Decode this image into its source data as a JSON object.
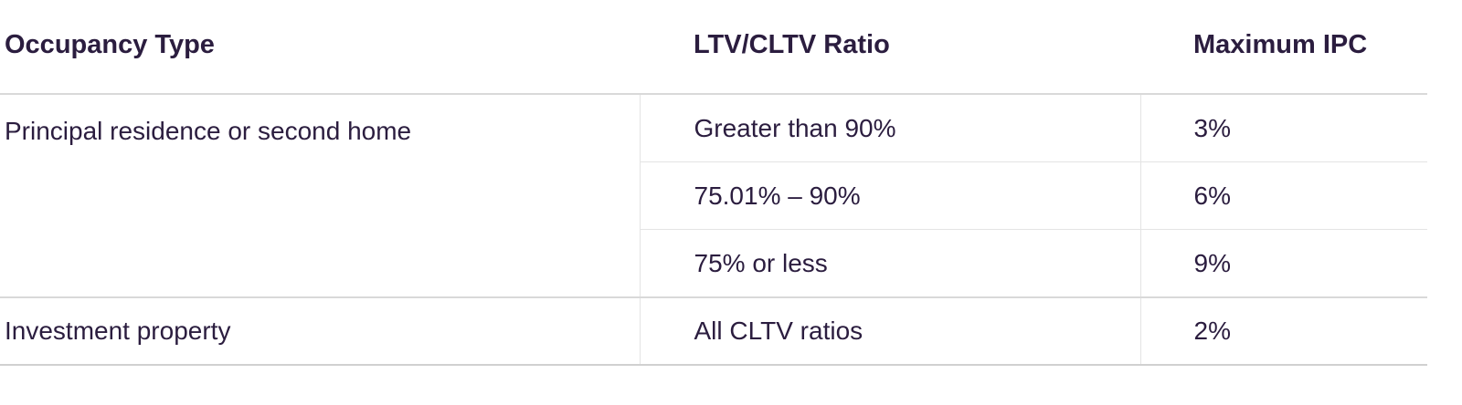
{
  "table": {
    "headers": [
      "Occupancy Type",
      "LTV/CLTV Ratio",
      "Maximum IPC"
    ],
    "groups": [
      {
        "occupancy": "Principal residence or second home",
        "rows": [
          {
            "ltv": "Greater than 90%",
            "ipc": "3%"
          },
          {
            "ltv": "75.01% – 90%",
            "ipc": "6%"
          },
          {
            "ltv": "75% or less",
            "ipc": "9%"
          }
        ]
      },
      {
        "occupancy": "Investment property",
        "rows": [
          {
            "ltv": "All CLTV ratios",
            "ipc": "2%"
          }
        ]
      }
    ]
  }
}
